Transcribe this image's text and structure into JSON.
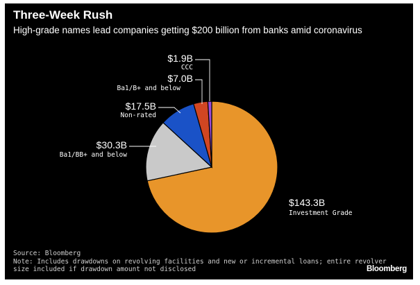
{
  "header": {
    "title": "Three-Week Rush",
    "subtitle": "High-grade names lead companies getting $200 billion from banks amid coronavirus"
  },
  "chart_data": {
    "type": "pie",
    "title": "Three-Week Rush",
    "subtitle": "High-grade names lead companies getting $200 billion from banks amid coronavirus",
    "unit": "$ billion",
    "slices": [
      {
        "label": "Investment Grade",
        "value_label": "$143.3B",
        "value": 143.3,
        "color": "#e8952a"
      },
      {
        "label": "Ba1/BB+ and below",
        "value_label": "$30.3B",
        "value": 30.3,
        "color": "#c9c9c9"
      },
      {
        "label": "Non-rated",
        "value_label": "$17.5B",
        "value": 17.5,
        "color": "#1a52c7"
      },
      {
        "label": "Ba1/B+ and below",
        "value_label": "$7.0B",
        "value": 7.0,
        "color": "#d14622"
      },
      {
        "label": "CCC",
        "value_label": "$1.9B",
        "value": 1.9,
        "color": "#9a4ad6"
      }
    ]
  },
  "footer": {
    "source": "Source: Bloomberg",
    "note_line1": "Note: Includes drawdowns on revolving facilities and new or incremental loans; entire revolver",
    "note_line2": "size included if drawdown amount not disclosed",
    "brand": "Bloomberg"
  }
}
